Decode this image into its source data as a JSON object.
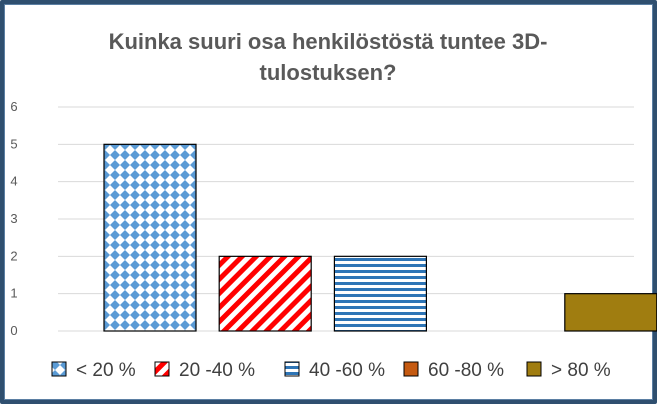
{
  "chart_data": {
    "type": "bar",
    "title_lines": [
      "Kuinka suuri osa henkilöstöstä tuntee 3D-",
      "tulostuksen?"
    ],
    "xlabel": "",
    "ylabel": "",
    "ylim": [
      0,
      6
    ],
    "yticks": [
      "0",
      "1",
      "2",
      "3",
      "4",
      "5",
      "6"
    ],
    "grid": true,
    "legend_position": "bottom",
    "categories": [
      "< 20 %",
      "20 -40 %",
      "40 -60 %",
      "60 -80 %",
      "> 80 %"
    ],
    "values": [
      5,
      2,
      2,
      0,
      1
    ],
    "colors": [
      "#5b9bd5",
      "#ff0000",
      "#2e75b6",
      "#c55a11",
      "#a07d10"
    ],
    "patterns": [
      "diamond-grid",
      "diagonal-stripes",
      "horizontal-stripes",
      "solid",
      "solid"
    ]
  }
}
